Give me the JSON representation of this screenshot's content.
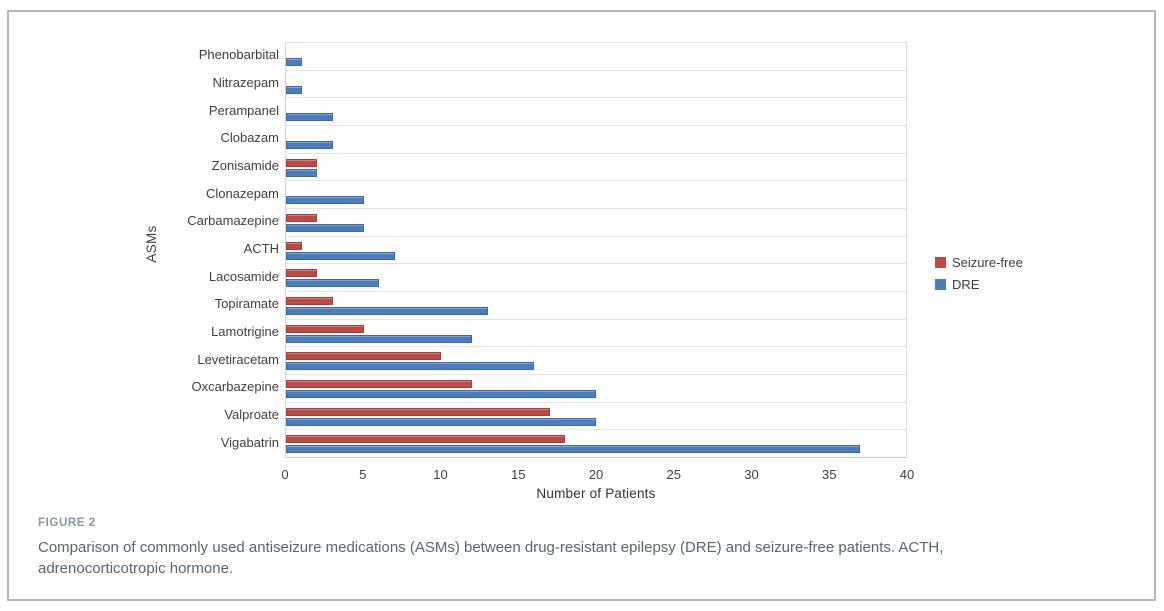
{
  "figure": {
    "label": "FIGURE 2",
    "caption": "Comparison of commonly used antiseizure medications (ASMs) between drug-resistant epilepsy (DRE) and seizure-free patients. ACTH, adrenocorticotropic hormone."
  },
  "chart_data": {
    "type": "bar",
    "orientation": "horizontal",
    "title": "",
    "xlabel": "Number of Patients",
    "ylabel": "ASMs",
    "xlim": [
      0,
      40
    ],
    "xticks": [
      0,
      5,
      10,
      15,
      20,
      25,
      30,
      35,
      40
    ],
    "grid": "horizontal-category-separators",
    "legend_position": "right-middle",
    "categories_top_to_bottom": [
      "Phenobarbital",
      "Nitrazepam",
      "Perampanel",
      "Clobazam",
      "Zonisamide",
      "Clonazepam",
      "Carbamazepine",
      "ACTH",
      "Lacosamide",
      "Topiramate",
      "Lamotrigine",
      "Levetiracetam",
      "Oxcarbazepine",
      "Valproate",
      "Vigabatrin"
    ],
    "series": [
      {
        "name": "Seizure-free",
        "color": "#be4a46",
        "border_color": "#9e3f3c",
        "values": [
          0,
          0,
          0,
          0,
          2,
          0,
          2,
          1,
          2,
          3,
          5,
          10,
          12,
          17,
          18
        ]
      },
      {
        "name": "DRE",
        "color": "#4a7cbe",
        "border_color": "#3a689f",
        "values": [
          1,
          1,
          3,
          3,
          2,
          5,
          5,
          7,
          6,
          13,
          12,
          16,
          20,
          20,
          37
        ]
      }
    ]
  },
  "colors": {
    "grid_line": "#e4e4e4",
    "axis_line": "#c2c2c2",
    "text": "#3f3f3f",
    "caption_label": "#8a959d",
    "caption_body": "#5a646e",
    "card_border": "#b4b7b9"
  }
}
